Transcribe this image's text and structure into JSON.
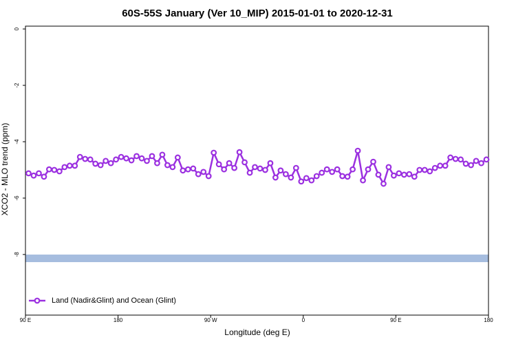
{
  "chart_data": {
    "type": "line",
    "title": "60S-55S January (Ver 10_MIP)   2015-01-01 to 2020-12-31",
    "x_label": "Longitude (deg E)",
    "y_label": "XCO2 - MLO trend (ppm)",
    "xlim": [
      90,
      540
    ],
    "ylim": [
      -10.15,
      0.1
    ],
    "xticks": [
      {
        "value": 90,
        "label": "90 E"
      },
      180,
      {
        "value": 270,
        "label": "90 W"
      },
      {
        "value": 360,
        "label": "0"
      },
      {
        "value": 450,
        "label": "90 E"
      },
      {
        "value": 540,
        "label": "180"
      }
    ],
    "yticks": [
      0,
      -2,
      -4,
      -6,
      -8
    ],
    "legend": "bottomleft",
    "x": [
      93,
      98,
      103,
      108,
      113,
      118,
      123,
      128,
      133,
      138,
      143,
      148,
      153,
      158,
      163,
      168,
      173,
      178,
      183,
      188,
      193,
      198,
      203,
      208,
      213,
      218,
      223,
      228,
      233,
      238,
      243,
      248,
      253,
      258,
      263,
      268,
      273,
      278,
      283,
      288,
      293,
      298,
      303,
      308,
      313,
      318,
      323,
      328,
      333,
      338,
      343,
      348,
      353,
      358,
      363,
      368,
      373,
      378,
      383,
      388,
      393,
      398,
      403,
      408,
      413,
      418,
      423,
      428,
      433,
      438,
      443,
      448,
      453,
      458,
      463,
      468,
      473,
      478,
      483,
      488,
      493,
      498,
      503,
      508,
      513,
      518,
      523,
      528,
      533,
      538
    ],
    "series": [
      {
        "name": "Land (Nadir&Glint) and Ocean (Glint)",
        "color": "#9b30e0",
        "values": [
          -5.12,
          -5.2,
          -5.12,
          -5.24,
          -4.98,
          -5.0,
          -5.05,
          -4.9,
          -4.85,
          -4.85,
          -4.54,
          -4.61,
          -4.63,
          -4.78,
          -4.83,
          -4.68,
          -4.76,
          -4.63,
          -4.54,
          -4.59,
          -4.66,
          -4.51,
          -4.59,
          -4.68,
          -4.51,
          -4.76,
          -4.46,
          -4.83,
          -4.9,
          -4.56,
          -5.02,
          -4.98,
          -4.95,
          -5.15,
          -5.07,
          -5.22,
          -4.39,
          -4.8,
          -4.98,
          -4.76,
          -4.93,
          -4.37,
          -4.73,
          -5.1,
          -4.9,
          -4.95,
          -5.0,
          -4.76,
          -5.27,
          -5.02,
          -5.15,
          -5.27,
          -4.93,
          -5.41,
          -5.29,
          -5.37,
          -5.22,
          -5.1,
          -4.98,
          -5.07,
          -4.98,
          -5.22,
          -5.24,
          -4.98,
          -4.32,
          -5.37,
          -4.98,
          -4.71,
          -5.17,
          -5.49,
          -4.9,
          -5.2,
          -5.12,
          -5.17,
          -5.15,
          -5.24,
          -5.0,
          -5.0,
          -5.05,
          -4.93,
          -4.85,
          -4.85,
          -4.56,
          -4.61,
          -4.63,
          -4.78,
          -4.83,
          -4.68,
          -4.76,
          -4.63
        ]
      }
    ]
  }
}
